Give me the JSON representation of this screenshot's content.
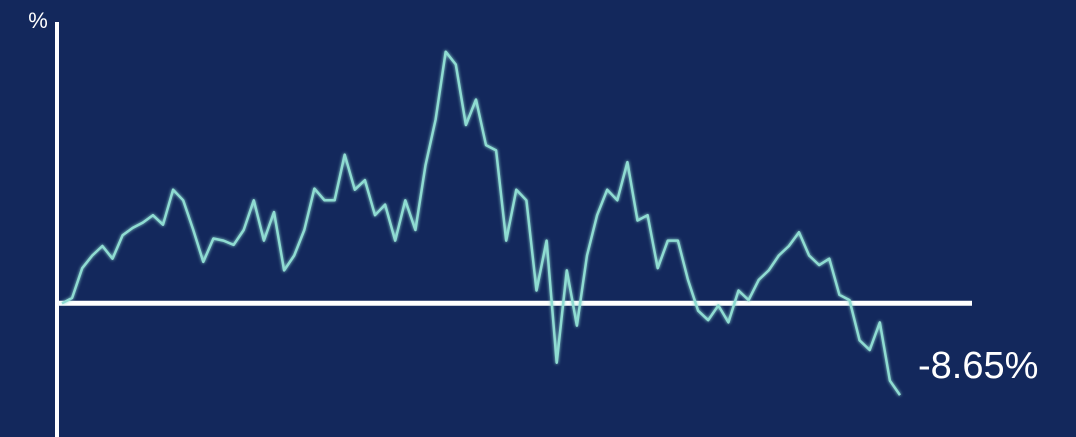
{
  "chart_data": {
    "type": "line",
    "y_label": "%",
    "annotation": "-8.65%",
    "color": "#8fdcd2",
    "ylim": [
      -12.6,
      26.5
    ],
    "values": [
      0,
      0.5,
      3.3,
      4.5,
      5.4,
      4.2,
      6.4,
      7.1,
      7.6,
      8.3,
      7.4,
      10.7,
      9.7,
      6.9,
      3.9,
      6.1,
      5.9,
      5.5,
      6.9,
      9.7,
      5.9,
      8.6,
      3.1,
      4.5,
      6.9,
      10.8,
      9.7,
      9.7,
      14.0,
      10.7,
      11.6,
      8.3,
      9.3,
      5.9,
      9.7,
      6.9,
      13.0,
      17.3,
      23.7,
      22.5,
      16.8,
      19.2,
      14.9,
      14.4,
      5.9,
      10.7,
      9.7,
      1.2,
      5.9,
      -5.6,
      3.1,
      -2.1,
      4.5,
      8.3,
      10.7,
      9.7,
      13.3,
      7.8,
      8.3,
      3.3,
      5.9,
      5.9,
      2.2,
      -0.7,
      -1.6,
      -0.2,
      -1.8,
      1.2,
      0.3,
      2.2,
      3.1,
      4.5,
      5.4,
      6.7,
      4.5,
      3.6,
      4.2,
      0.8,
      0.3,
      -3.5,
      -4.4,
      -1.8,
      -7.3,
      -8.65
    ]
  }
}
